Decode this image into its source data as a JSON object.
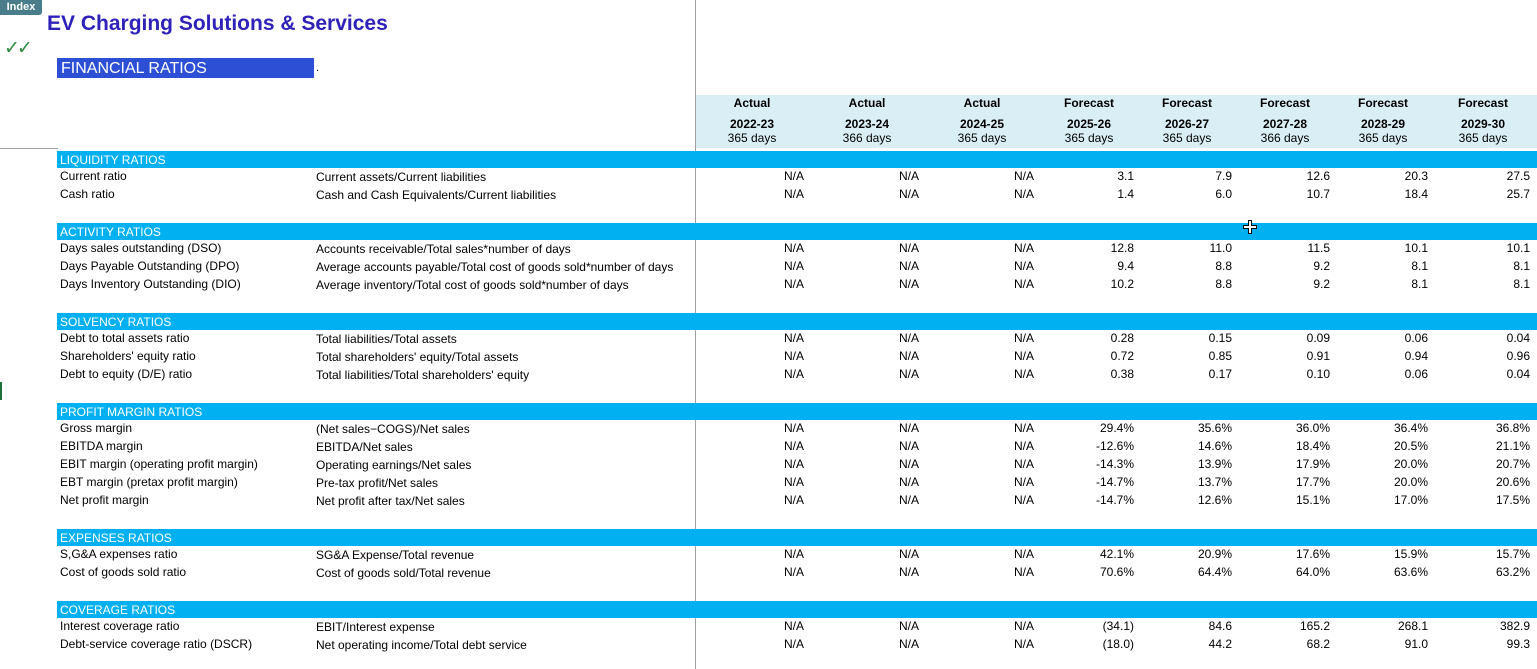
{
  "index_tab": "Index",
  "title": "EV Charging Solutions & Services",
  "checkmarks": "✓✓",
  "section_title": "FINANCIAL RATIOS",
  "dot": ".",
  "columns": [
    {
      "type": "Actual",
      "year": "2022-23",
      "days": "365 days"
    },
    {
      "type": "Actual",
      "year": "2023-24",
      "days": "366 days"
    },
    {
      "type": "Actual",
      "year": "2024-25",
      "days": "365 days"
    },
    {
      "type": "Forecast",
      "year": "2025-26",
      "days": "365 days"
    },
    {
      "type": "Forecast",
      "year": "2026-27",
      "days": "365 days"
    },
    {
      "type": "Forecast",
      "year": "2027-28",
      "days": "366 days"
    },
    {
      "type": "Forecast",
      "year": "2028-29",
      "days": "365 days"
    },
    {
      "type": "Forecast",
      "year": "2029-30",
      "days": "365 days"
    }
  ],
  "sections": [
    {
      "title": "LIQUIDITY RATIOS",
      "rows": [
        {
          "label": "Current ratio",
          "formula": "Current assets/Current liabilities",
          "values": [
            "N/A",
            "N/A",
            "N/A",
            "3.1",
            "7.9",
            "12.6",
            "20.3",
            "27.5"
          ]
        },
        {
          "label": "Cash ratio",
          "formula": "Cash and Cash Equivalents/Current liabilities",
          "values": [
            "N/A",
            "N/A",
            "N/A",
            "1.4",
            "6.0",
            "10.7",
            "18.4",
            "25.7"
          ]
        }
      ]
    },
    {
      "title": "ACTIVITY RATIOS",
      "rows": [
        {
          "label": "Days sales outstanding (DSO)",
          "formula": "Accounts receivable/Total sales*number of days",
          "values": [
            "N/A",
            "N/A",
            "N/A",
            "12.8",
            "11.0",
            "11.5",
            "10.1",
            "10.1"
          ]
        },
        {
          "label": "Days Payable Outstanding (DPO)",
          "formula": "Average accounts payable/Total cost of goods sold*number of days",
          "values": [
            "N/A",
            "N/A",
            "N/A",
            "9.4",
            "8.8",
            "9.2",
            "8.1",
            "8.1"
          ]
        },
        {
          "label": "Days Inventory Outstanding (DIO)",
          "formula": "Average inventory/Total cost of goods sold*number of days",
          "values": [
            "N/A",
            "N/A",
            "N/A",
            "10.2",
            "8.8",
            "9.2",
            "8.1",
            "8.1"
          ]
        }
      ]
    },
    {
      "title": "SOLVENCY RATIOS",
      "rows": [
        {
          "label": "Debt to total assets ratio",
          "formula": "Total liabilities/Total assets",
          "values": [
            "N/A",
            "N/A",
            "N/A",
            "0.28",
            "0.15",
            "0.09",
            "0.06",
            "0.04"
          ]
        },
        {
          "label": "Shareholders' equity ratio",
          "formula": "Total shareholders' equity/Total assets",
          "values": [
            "N/A",
            "N/A",
            "N/A",
            "0.72",
            "0.85",
            "0.91",
            "0.94",
            "0.96"
          ]
        },
        {
          "label": "Debt to equity (D/E) ratio",
          "formula": "Total liabilities/Total shareholders' equity",
          "values": [
            "N/A",
            "N/A",
            "N/A",
            "0.38",
            "0.17",
            "0.10",
            "0.06",
            "0.04"
          ]
        }
      ]
    },
    {
      "title": "PROFIT MARGIN RATIOS",
      "rows": [
        {
          "label": "Gross margin",
          "formula": "(Net sales−COGS)/Net sales",
          "values": [
            "N/A",
            "N/A",
            "N/A",
            "29.4%",
            "35.6%",
            "36.0%",
            "36.4%",
            "36.8%"
          ]
        },
        {
          "label": "EBITDA margin",
          "formula": "EBITDA/Net sales",
          "values": [
            "N/A",
            "N/A",
            "N/A",
            "-12.6%",
            "14.6%",
            "18.4%",
            "20.5%",
            "21.1%"
          ]
        },
        {
          "label": "EBIT margin (operating profit margin)",
          "formula": "Operating earnings/Net sales",
          "values": [
            "N/A",
            "N/A",
            "N/A",
            "-14.3%",
            "13.9%",
            "17.9%",
            "20.0%",
            "20.7%"
          ]
        },
        {
          "label": "EBT margin (pretax profit margin)",
          "formula": "Pre-tax profit/Net sales",
          "values": [
            "N/A",
            "N/A",
            "N/A",
            "-14.7%",
            "13.7%",
            "17.7%",
            "20.0%",
            "20.6%"
          ]
        },
        {
          "label": "Net profit margin",
          "formula": "Net profit after tax/Net sales",
          "values": [
            "N/A",
            "N/A",
            "N/A",
            "-14.7%",
            "12.6%",
            "15.1%",
            "17.0%",
            "17.5%"
          ]
        }
      ]
    },
    {
      "title": "EXPENSES RATIOS",
      "rows": [
        {
          "label": "S,G&A expenses ratio",
          "formula": "SG&A Expense/Total revenue",
          "values": [
            "N/A",
            "N/A",
            "N/A",
            "42.1%",
            "20.9%",
            "17.6%",
            "15.9%",
            "15.7%"
          ]
        },
        {
          "label": "Cost of goods sold ratio",
          "formula": "Cost of goods sold/Total revenue",
          "values": [
            "N/A",
            "N/A",
            "N/A",
            "70.6%",
            "64.4%",
            "64.0%",
            "63.6%",
            "63.2%"
          ]
        }
      ]
    },
    {
      "title": "COVERAGE RATIOS",
      "rows": [
        {
          "label": "Interest coverage ratio",
          "formula": "EBIT/Interest expense",
          "values": [
            "N/A",
            "N/A",
            "N/A",
            "(34.1)",
            "84.6",
            "165.2",
            "268.1",
            "382.9"
          ]
        },
        {
          "label": "Debt-service coverage ratio (DSCR)",
          "formula": "Net operating income/Total debt service",
          "values": [
            "N/A",
            "N/A",
            "N/A",
            "(18.0)",
            "44.2",
            "68.2",
            "91.0",
            "99.3"
          ]
        }
      ]
    }
  ],
  "colors": {
    "title": "#2e22b8",
    "section_title_bg": "#2c4fd6",
    "section_bar_bg": "#00b0f0",
    "header_bg": "#daeef6",
    "check_green": "#2e8b3a"
  }
}
